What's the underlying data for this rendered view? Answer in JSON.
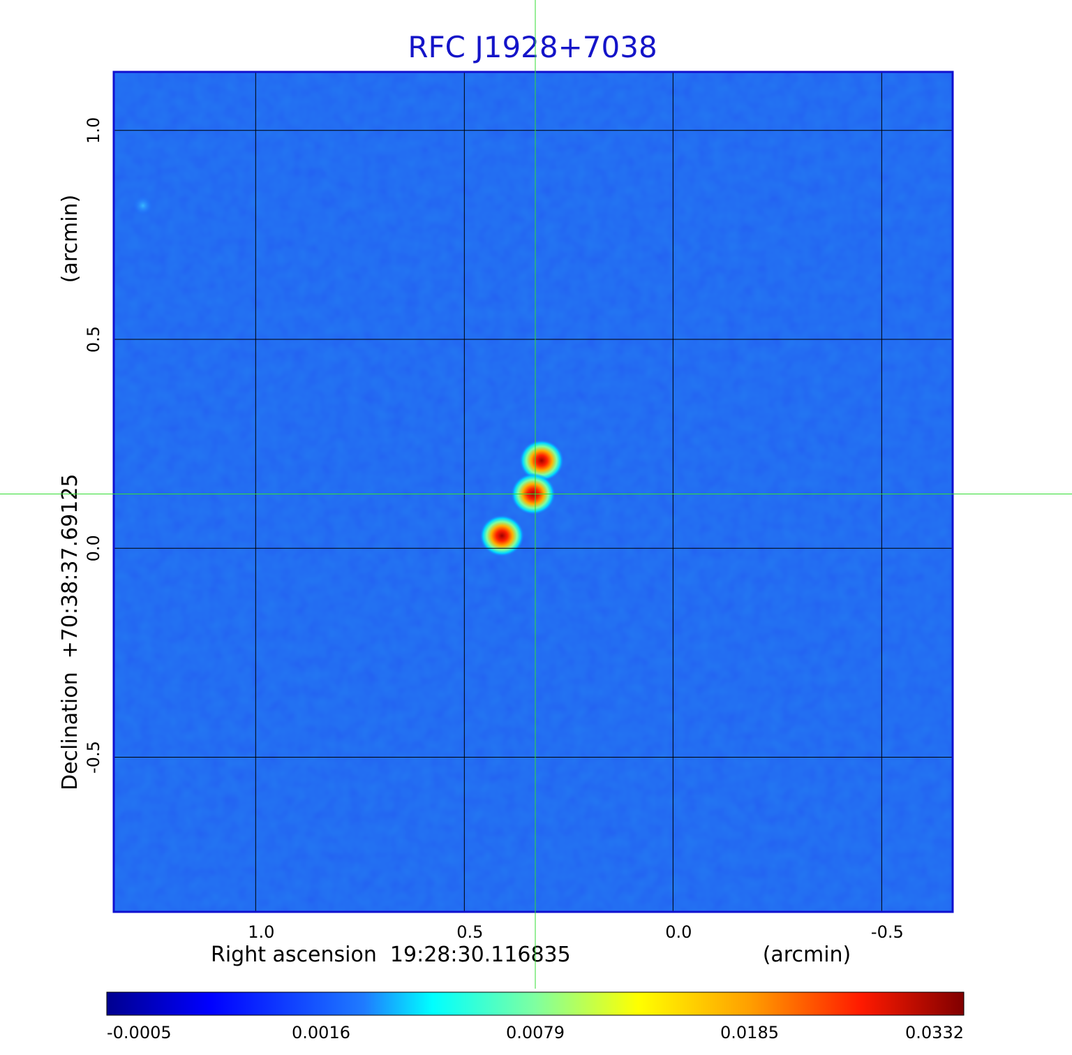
{
  "chart_data": {
    "type": "heatmap",
    "title": "RFC J1928+7038",
    "xlabel": "Right ascension  19:28:30.116835",
    "xunit": "(arcmin)",
    "ylabel": "Declination  +70:38:37.69125",
    "yunit": "(arcmin)",
    "xlim": [
      1.34,
      -0.67
    ],
    "ylim": [
      -0.87,
      1.14
    ],
    "x_ticks": [
      1.0,
      0.5,
      0.0,
      -0.5
    ],
    "x_tick_labels": [
      "1.0",
      "0.5",
      "0.0",
      "-0.5"
    ],
    "y_ticks": [
      1.0,
      0.5,
      0.0,
      -0.5
    ],
    "y_tick_labels": [
      "1.0",
      "0.5",
      "0.0",
      "-0.5"
    ],
    "grid": true,
    "crosshair": {
      "x": 0.33,
      "y": 0.13
    },
    "sources": [
      {
        "x": 0.315,
        "y": 0.21,
        "peak": 0.0332
      },
      {
        "x": 0.335,
        "y": 0.13,
        "peak": 0.029
      },
      {
        "x": 0.41,
        "y": 0.03,
        "peak": 0.031
      },
      {
        "x": 1.27,
        "y": 0.82,
        "peak": 0.003
      }
    ],
    "colorbar": {
      "colormap": "jet",
      "ticks": [
        -0.0005,
        0.0016,
        0.0079,
        0.0185,
        0.0332
      ],
      "tick_labels": [
        "-0.0005",
        "0.0016",
        "0.0079",
        "0.0185",
        "0.0332"
      ]
    },
    "colors": {
      "title": "#1414c8",
      "frame": "#1010d0",
      "grid": "#000000",
      "crosshair": "#33dd33",
      "background": "#1a5cf0"
    }
  }
}
